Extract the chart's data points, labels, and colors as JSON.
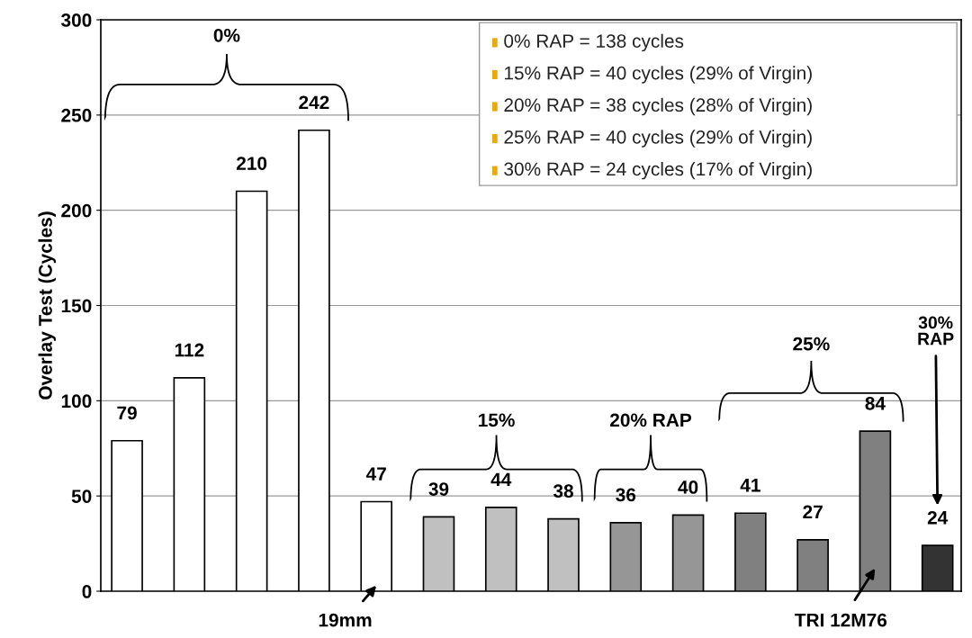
{
  "chart_data": {
    "type": "bar",
    "ylabel": "Overlay Test (Cycles)",
    "categories": [
      null,
      null,
      null,
      null,
      null,
      null,
      null,
      null,
      null,
      null,
      null,
      null,
      null,
      null
    ],
    "values": [
      79,
      112,
      210,
      242,
      47,
      39,
      44,
      38,
      36,
      40,
      41,
      27,
      84,
      24
    ],
    "colors": [
      "#ffffff",
      "#ffffff",
      "#ffffff",
      "#ffffff",
      "#ffffff",
      "#c0c0c0",
      "#c0c0c0",
      "#c0c0c0",
      "#969696",
      "#969696",
      "#808080",
      "#808080",
      "#808080",
      "#333333"
    ],
    "ylim": [
      0,
      300
    ],
    "yticks": [
      0,
      50,
      100,
      150,
      200,
      250,
      300
    ],
    "grid": "y",
    "data_labels": true,
    "annotations": [
      "0%",
      "15%",
      "20% RAP",
      "25%",
      "30%\nRAP",
      "19mm",
      "TRI 12M76",
      "0% RAP = 138 cycles",
      "15% RAP = 40 cycles (29% of Virgin)",
      "20% RAP = 38 cycles (28% of Virgin)",
      "25% RAP = 40 cycles (29% of Virgin)",
      "30% RAP = 24 cycles (17% of Virgin)"
    ]
  }
}
